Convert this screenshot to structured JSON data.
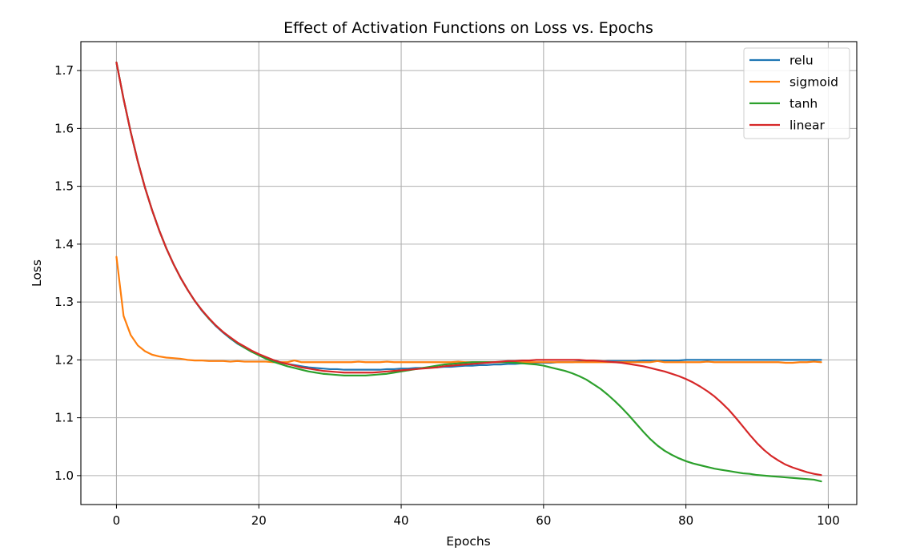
{
  "chart_data": {
    "type": "line",
    "title": "Effect of Activation Functions on Loss vs. Epochs",
    "xlabel": "Epochs",
    "ylabel": "Loss",
    "xlim": [
      -5,
      104
    ],
    "ylim": [
      0.95,
      1.75
    ],
    "xticks": [
      0,
      20,
      40,
      60,
      80,
      100
    ],
    "yticks": [
      1.0,
      1.1,
      1.2,
      1.3,
      1.4,
      1.5,
      1.6,
      1.7
    ],
    "grid": true,
    "legend_position": "top-right",
    "x": [
      0,
      1,
      2,
      3,
      4,
      5,
      6,
      7,
      8,
      9,
      10,
      11,
      12,
      13,
      14,
      15,
      16,
      17,
      18,
      19,
      20,
      21,
      22,
      23,
      24,
      25,
      26,
      27,
      28,
      29,
      30,
      31,
      32,
      33,
      34,
      35,
      36,
      37,
      38,
      39,
      40,
      41,
      42,
      43,
      44,
      45,
      46,
      47,
      48,
      49,
      50,
      51,
      52,
      53,
      54,
      55,
      56,
      57,
      58,
      59,
      60,
      61,
      62,
      63,
      64,
      65,
      66,
      67,
      68,
      69,
      70,
      71,
      72,
      73,
      74,
      75,
      76,
      77,
      78,
      79,
      80,
      81,
      82,
      83,
      84,
      85,
      86,
      87,
      88,
      89,
      90,
      91,
      92,
      93,
      94,
      95,
      96,
      97,
      98,
      99
    ],
    "series": [
      {
        "name": "relu",
        "color": "#1f77b4",
        "values": [
          1.714,
          1.651,
          1.594,
          1.543,
          1.498,
          1.459,
          1.424,
          1.393,
          1.366,
          1.342,
          1.321,
          1.302,
          1.285,
          1.271,
          1.258,
          1.247,
          1.237,
          1.228,
          1.221,
          1.214,
          1.209,
          1.204,
          1.2,
          1.196,
          1.193,
          1.191,
          1.189,
          1.187,
          1.186,
          1.185,
          1.184,
          1.184,
          1.183,
          1.183,
          1.183,
          1.183,
          1.183,
          1.183,
          1.184,
          1.184,
          1.185,
          1.185,
          1.186,
          1.186,
          1.187,
          1.187,
          1.188,
          1.188,
          1.189,
          1.19,
          1.19,
          1.191,
          1.191,
          1.192,
          1.192,
          1.193,
          1.193,
          1.194,
          1.194,
          1.195,
          1.195,
          1.195,
          1.196,
          1.196,
          1.196,
          1.197,
          1.197,
          1.197,
          1.197,
          1.198,
          1.198,
          1.198,
          1.198,
          1.198,
          1.199,
          1.199,
          1.199,
          1.199,
          1.199,
          1.199,
          1.2,
          1.2,
          1.2,
          1.2,
          1.2,
          1.2,
          1.2,
          1.2,
          1.2,
          1.2,
          1.2,
          1.2,
          1.2,
          1.2,
          1.2,
          1.2,
          1.2,
          1.2,
          1.2,
          1.2
        ]
      },
      {
        "name": "sigmoid",
        "color": "#ff7f0e",
        "values": [
          1.378,
          1.276,
          1.243,
          1.225,
          1.215,
          1.209,
          1.206,
          1.204,
          1.203,
          1.202,
          1.2,
          1.199,
          1.199,
          1.198,
          1.198,
          1.198,
          1.197,
          1.198,
          1.197,
          1.197,
          1.197,
          1.197,
          1.196,
          1.196,
          1.196,
          1.199,
          1.196,
          1.196,
          1.196,
          1.196,
          1.196,
          1.196,
          1.196,
          1.196,
          1.197,
          1.196,
          1.196,
          1.196,
          1.197,
          1.196,
          1.196,
          1.196,
          1.196,
          1.196,
          1.196,
          1.196,
          1.196,
          1.196,
          1.197,
          1.196,
          1.196,
          1.196,
          1.196,
          1.196,
          1.196,
          1.196,
          1.196,
          1.196,
          1.196,
          1.196,
          1.196,
          1.196,
          1.196,
          1.196,
          1.196,
          1.196,
          1.196,
          1.196,
          1.196,
          1.196,
          1.196,
          1.196,
          1.196,
          1.196,
          1.196,
          1.196,
          1.198,
          1.196,
          1.196,
          1.196,
          1.196,
          1.196,
          1.196,
          1.197,
          1.196,
          1.196,
          1.196,
          1.196,
          1.196,
          1.196,
          1.196,
          1.196,
          1.196,
          1.196,
          1.195,
          1.195,
          1.196,
          1.196,
          1.197,
          1.196
        ]
      },
      {
        "name": "tanh",
        "color": "#2ca02c",
        "values": [
          1.714,
          1.651,
          1.594,
          1.543,
          1.498,
          1.459,
          1.424,
          1.393,
          1.366,
          1.342,
          1.321,
          1.302,
          1.286,
          1.271,
          1.259,
          1.248,
          1.238,
          1.229,
          1.221,
          1.214,
          1.208,
          1.202,
          1.197,
          1.193,
          1.189,
          1.186,
          1.183,
          1.18,
          1.178,
          1.176,
          1.175,
          1.174,
          1.173,
          1.173,
          1.173,
          1.173,
          1.174,
          1.175,
          1.176,
          1.178,
          1.18,
          1.182,
          1.184,
          1.186,
          1.188,
          1.19,
          1.192,
          1.193,
          1.194,
          1.195,
          1.196,
          1.196,
          1.196,
          1.196,
          1.196,
          1.196,
          1.195,
          1.194,
          1.193,
          1.192,
          1.19,
          1.187,
          1.184,
          1.181,
          1.177,
          1.172,
          1.166,
          1.158,
          1.15,
          1.14,
          1.129,
          1.117,
          1.104,
          1.09,
          1.076,
          1.063,
          1.052,
          1.043,
          1.036,
          1.03,
          1.025,
          1.021,
          1.018,
          1.015,
          1.012,
          1.01,
          1.008,
          1.006,
          1.004,
          1.003,
          1.001,
          1.0,
          0.999,
          0.998,
          0.997,
          0.996,
          0.995,
          0.994,
          0.993,
          0.99
        ]
      },
      {
        "name": "linear",
        "color": "#d62728",
        "values": [
          1.714,
          1.651,
          1.594,
          1.543,
          1.498,
          1.459,
          1.424,
          1.393,
          1.366,
          1.342,
          1.321,
          1.302,
          1.286,
          1.272,
          1.259,
          1.248,
          1.239,
          1.23,
          1.223,
          1.216,
          1.21,
          1.205,
          1.2,
          1.196,
          1.193,
          1.19,
          1.187,
          1.185,
          1.183,
          1.181,
          1.18,
          1.179,
          1.178,
          1.178,
          1.178,
          1.178,
          1.178,
          1.179,
          1.18,
          1.181,
          1.182,
          1.183,
          1.184,
          1.185,
          1.186,
          1.187,
          1.189,
          1.19,
          1.191,
          1.192,
          1.193,
          1.194,
          1.195,
          1.196,
          1.197,
          1.198,
          1.198,
          1.199,
          1.199,
          1.2,
          1.2,
          1.2,
          1.2,
          1.2,
          1.2,
          1.2,
          1.199,
          1.199,
          1.198,
          1.197,
          1.196,
          1.195,
          1.193,
          1.191,
          1.189,
          1.186,
          1.183,
          1.18,
          1.176,
          1.172,
          1.167,
          1.161,
          1.154,
          1.146,
          1.137,
          1.126,
          1.114,
          1.1,
          1.085,
          1.07,
          1.056,
          1.044,
          1.034,
          1.026,
          1.019,
          1.014,
          1.01,
          1.006,
          1.003,
          1.001
        ]
      }
    ]
  }
}
